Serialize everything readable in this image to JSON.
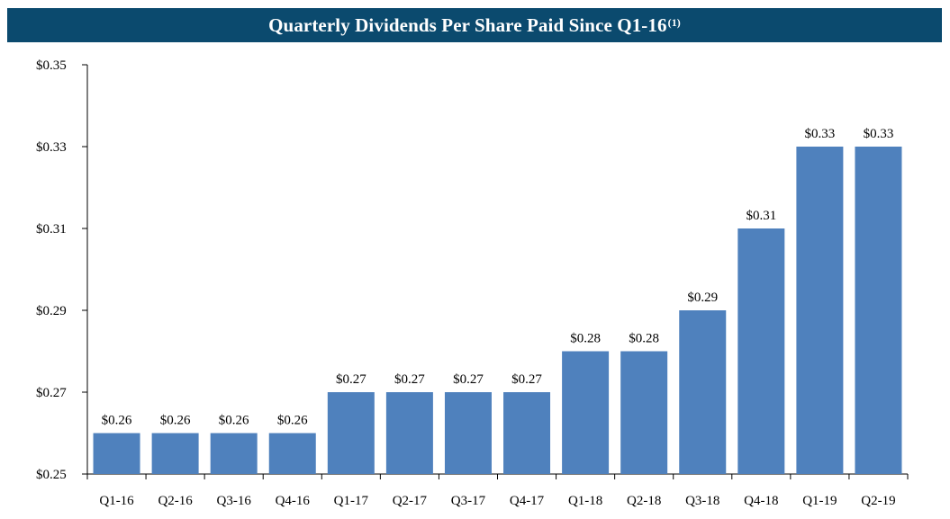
{
  "title": {
    "text": "Quarterly Dividends Per Share Paid Since Q1-16",
    "footnote": "(1)"
  },
  "colors": {
    "banner": "#0b4a6e",
    "bar": "#4f81bd",
    "axis": "#000000"
  },
  "chart_data": {
    "type": "bar",
    "title": "Quarterly Dividends Per Share Paid Since Q1-16(1)",
    "xlabel": "",
    "ylabel": "",
    "categories": [
      "Q1-16",
      "Q2-16",
      "Q3-16",
      "Q4-16",
      "Q1-17",
      "Q2-17",
      "Q3-17",
      "Q4-17",
      "Q1-18",
      "Q2-18",
      "Q3-18",
      "Q4-18",
      "Q1-19",
      "Q2-19"
    ],
    "values": [
      0.26,
      0.26,
      0.26,
      0.26,
      0.27,
      0.27,
      0.27,
      0.27,
      0.28,
      0.28,
      0.29,
      0.31,
      0.33,
      0.33
    ],
    "data_labels": [
      "$0.26",
      "$0.26",
      "$0.26",
      "$0.26",
      "$0.27",
      "$0.27",
      "$0.27",
      "$0.27",
      "$0.28",
      "$0.28",
      "$0.29",
      "$0.31",
      "$0.33",
      "$0.33"
    ],
    "ylim": [
      0.25,
      0.35
    ],
    "yticks": [
      0.25,
      0.27,
      0.29,
      0.31,
      0.33,
      0.35
    ],
    "ytick_labels": [
      "$0.25",
      "$0.27",
      "$0.29",
      "$0.31",
      "$0.33",
      "$0.35"
    ],
    "grid": false,
    "legend": "none"
  }
}
